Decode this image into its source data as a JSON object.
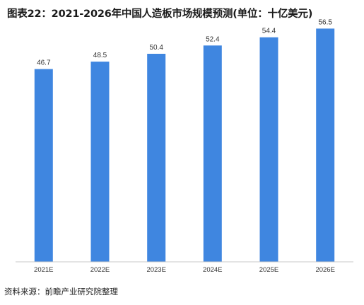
{
  "title": "图表22：2021-2026年中国人造板市场规模预测(单位：十亿美元)",
  "source": "资料来源：前瞻产业研究院整理",
  "colors": {
    "bar": "#3f86e0",
    "axis": "#c8c8c8",
    "text": "#333333"
  },
  "chart_data": {
    "type": "bar",
    "categories": [
      "2021E",
      "2022E",
      "2023E",
      "2024E",
      "2025E",
      "2026E"
    ],
    "values": [
      46.7,
      48.5,
      50.4,
      52.4,
      54.4,
      56.5
    ],
    "title": "图表22：2021-2026年中国人造板市场规模预测(单位：十亿美元)",
    "xlabel": "",
    "ylabel": "",
    "ylim": [
      0,
      60
    ],
    "grid": false,
    "data_labels": true
  }
}
